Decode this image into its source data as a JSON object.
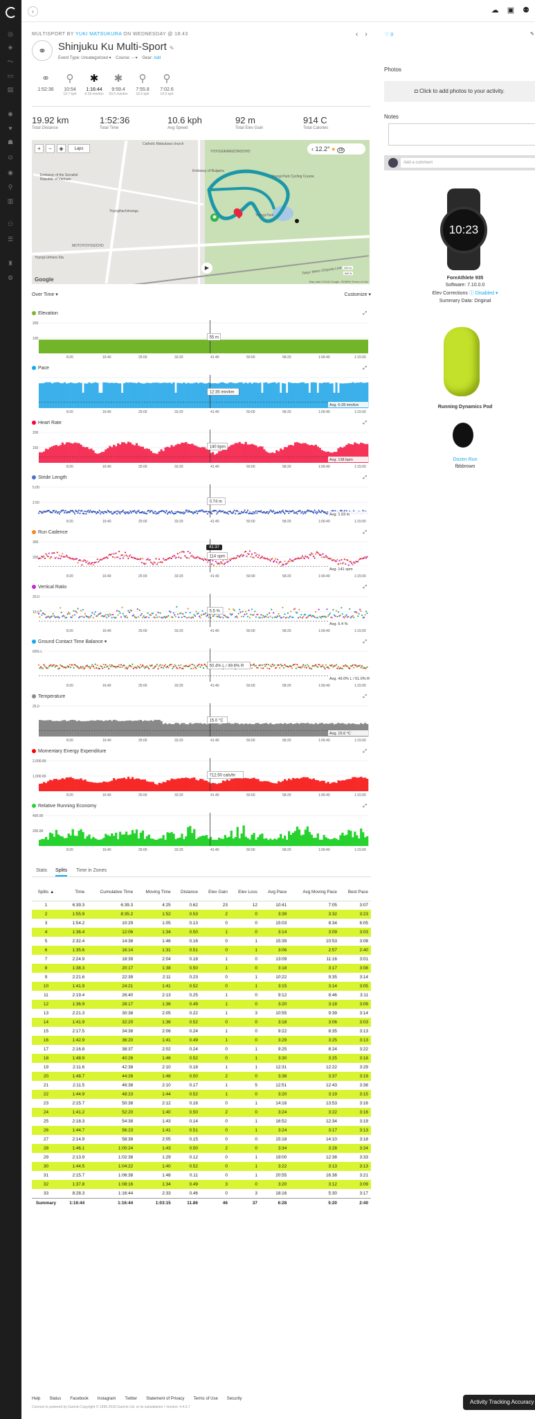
{
  "header": {
    "sport": "MULTISPORT BY",
    "user": "YUKI MATSUKURA",
    "on": "ON WEDNESDAY @ 18:43",
    "title": "Shinjuku Ku Multi-Sport",
    "meta_event": "Event Type: Uncategorized ▾",
    "meta_course": "Course: -- ▾",
    "meta_gear": "Gear:",
    "meta_gear_add": "Add",
    "likes": "0"
  },
  "legs": [
    {
      "icon": "multisport-icon",
      "time": "1:52:36",
      "sub": ""
    },
    {
      "icon": "bike-icon",
      "time": "10:54",
      "sub": "19.7 kph"
    },
    {
      "icon": "run-icon",
      "time": "1:16:44",
      "sub": "6:28 min/km"
    },
    {
      "icon": "run-icon",
      "time": "9:59.4",
      "sub": "59.5 min/km"
    },
    {
      "icon": "bike-icon",
      "time": "7:55.8",
      "sub": "18.5 kph"
    },
    {
      "icon": "bike-icon",
      "time": "7:02.6",
      "sub": "14.5 kph"
    }
  ],
  "summary": [
    {
      "value": "19.92 km",
      "label": "Total Distance"
    },
    {
      "value": "1:52:36",
      "label": "Total Time"
    },
    {
      "value": "10.6 kph",
      "label": "Avg Speed"
    },
    {
      "value": "92 m",
      "label": "Total Elev Gain"
    },
    {
      "value": "914 C",
      "label": "Total Calories"
    }
  ],
  "map": {
    "temp": "12.2°",
    "wind": "18",
    "laps": "Laps",
    "scale1": "100 m",
    "scale2": "500 ft",
    "attribution": "Map data ©2018 Google, ZENRIN   Terms of Use",
    "google": "Google",
    "labels": [
      "Catholic Matsubara church",
      "YOYOGIKAMIZONOCHO",
      "Embassy of Bulgaria",
      "Yoyogi Park Cycling Course",
      "Embassy of the Socialist Republic of Vietnam",
      "Yoyogi Park",
      "Yoyogihachimangu",
      "MOTOYOYOGICHO",
      "Tokyo Metro Chiyoda Line",
      "Yoyogi-Uehara Sta."
    ]
  },
  "view": {
    "left": "Over Time ▾",
    "right": "Customize ▾"
  },
  "charts": [
    {
      "key": "elev",
      "title": "Elevation",
      "color": "#7bb927",
      "fill": "#72b52a",
      "tooltip": "55 m",
      "avg": "",
      "ymax": "200",
      "ymid": "100",
      "kind": "area"
    },
    {
      "key": "pace",
      "title": "Pace",
      "color": "#11a9ed",
      "fill": "#3bb0ea",
      "tooltip": "12:35 min/km",
      "avg": "Avg. 6:28 min/km",
      "ymax": "",
      "ymid": "",
      "kind": "bars"
    },
    {
      "key": "hr",
      "title": "Heart Rate",
      "color": "#ff0035",
      "fill": "#f53358",
      "tooltip": "140 bpm",
      "avg": "Avg. 138 bpm",
      "ymax": "200",
      "ymid": "150",
      "kind": "hr"
    },
    {
      "key": "stride",
      "title": "Stride Length",
      "color": "#4d6ec9",
      "fill": "#3558c8",
      "tooltip": "0.74 m",
      "avg": "Avg. 1.03 m",
      "ymax": "5.00",
      "ymid": "2.50",
      "kind": "scatter"
    },
    {
      "key": "cad",
      "title": "Run Cadence",
      "color": "#f08a24",
      "fill": "#e7194b",
      "tooltip": "114 spm",
      "avg": "Avg. 141 spm",
      "ymax": "300",
      "ymid": "200",
      "kind": "scatter2"
    },
    {
      "key": "vr",
      "title": "Vertical Ratio",
      "color": "#c02ad0",
      "fill": "#c02ad0",
      "tooltip": "5.5 %",
      "avg": "Avg. 6.4 %",
      "ymax": "20.0",
      "ymid": "10.0",
      "kind": "scatter3"
    },
    {
      "key": "gct",
      "title": "Ground Contact Time Balance ▾",
      "color": "#11a9ed",
      "fill": "#f08a24",
      "tooltip": "50.4% L / 49.6% R",
      "avg": "Avg. 49.0% L / 51.0% R",
      "ymax": "60% L",
      "ymid": "",
      "kind": "scatter4"
    },
    {
      "key": "temp",
      "title": "Temperature",
      "color": "#888",
      "fill": "#888",
      "tooltip": "15.0 °C",
      "avg": "Avg. 15.6 °C",
      "ymax": "25.0",
      "ymid": "",
      "kind": "temp"
    },
    {
      "key": "mee",
      "title": "Momentary Energy Expenditure",
      "color": "#f00",
      "fill": "#f72828",
      "tooltip": "712.50 cals/hr",
      "avg": "",
      "ymax": "2,000.00",
      "ymid": "1,000.00",
      "kind": "mee"
    },
    {
      "key": "rre",
      "title": "Relative Running Economy",
      "color": "#2bd13a",
      "fill": "#27d12e",
      "tooltip": "",
      "avg": "",
      "ymax": "400.00",
      "ymid": "200.00",
      "kind": "rre"
    }
  ],
  "xticks": [
    "8:20",
    "16:40",
    "25:00",
    "33:20",
    "41:40",
    "50:00",
    "58:20",
    "1:06:40",
    "1:15:00"
  ],
  "cursor_time": "41:37",
  "photos": {
    "title": "Photos",
    "cta": "Click to add photos to your activity.",
    "notes": "Notes",
    "comment_ph": "Add a comment"
  },
  "devices": [
    {
      "name": "ForeAthlete 935",
      "l1": "Software: 7.10.0.0",
      "l2a": "Elev Corrections",
      "l2b": "Disabled ▾",
      "l3": "Summary Data: Original"
    },
    {
      "name": "Running Dynamics Pod"
    },
    {
      "name": "Dozen Run",
      "user": "fbbbrown",
      "watch": "10:23"
    }
  ],
  "tabs": [
    "Stats",
    "Splits",
    "Time in Zones"
  ],
  "table": {
    "headers": [
      "Splits ▲",
      "Cumulative Time",
      "Moving Time",
      "Distance",
      "Elev Gain",
      "Elev Loss",
      "Avg Pace",
      "Avg Moving Pace",
      "Best Pace"
    ],
    "time_header": "Time",
    "rows": [
      [
        "1",
        "6:39.3",
        "6:39.3",
        "4:25",
        "0.62",
        "23",
        "12",
        "10:41",
        "7:05",
        "3:07"
      ],
      [
        "2",
        "1:55.9",
        "8:35.2",
        "1:52",
        "0.53",
        "2",
        "0",
        "3:39",
        "3:32",
        "3:23"
      ],
      [
        "3",
        "1:54.2",
        "10:29",
        "1:05",
        "0.13",
        "0",
        "0",
        "15:03",
        "8:34",
        "6:05"
      ],
      [
        "4",
        "1:36.4",
        "12:06",
        "1:34",
        "0.50",
        "1",
        "0",
        "3:14",
        "3:09",
        "3:03"
      ],
      [
        "5",
        "2:32.4",
        "14:38",
        "1:46",
        "0.16",
        "0",
        "1",
        "15:39",
        "10:53",
        "3:08"
      ],
      [
        "6",
        "1:35.6",
        "16:14",
        "1:31",
        "0.51",
        "0",
        "1",
        "3:06",
        "2:57",
        "2:40"
      ],
      [
        "7",
        "2:24.9",
        "18:39",
        "2:04",
        "0.18",
        "1",
        "0",
        "13:09",
        "11:16",
        "3:01"
      ],
      [
        "8",
        "1:38.3",
        "20:17",
        "1:38",
        "0.50",
        "1",
        "0",
        "3:18",
        "3:17",
        "3:08"
      ],
      [
        "9",
        "2:21.6",
        "22:39",
        "2:11",
        "0.23",
        "0",
        "1",
        "10:22",
        "9:35",
        "3:14"
      ],
      [
        "10",
        "1:41.9",
        "24:21",
        "1:41",
        "0.52",
        "0",
        "1",
        "3:15",
        "3:14",
        "3:05"
      ],
      [
        "11",
        "2:19.4",
        "26:40",
        "2:13",
        "0.25",
        "1",
        "0",
        "9:12",
        "8:46",
        "3:11"
      ],
      [
        "12",
        "1:36.9",
        "28:17",
        "1:36",
        "0.49",
        "1",
        "0",
        "3:20",
        "3:18",
        "3:09"
      ],
      [
        "13",
        "2:21.3",
        "30:38",
        "2:05",
        "0.22",
        "1",
        "3",
        "10:55",
        "9:39",
        "3:14"
      ],
      [
        "14",
        "1:41.9",
        "32:20",
        "1:36",
        "0.52",
        "0",
        "0",
        "3:18",
        "3:06",
        "3:03"
      ],
      [
        "15",
        "2:17.5",
        "34:38",
        "2:06",
        "0.24",
        "1",
        "0",
        "9:22",
        "8:35",
        "3:13"
      ],
      [
        "16",
        "1:42.9",
        "36:20",
        "1:41",
        "0.49",
        "1",
        "0",
        "3:29",
        "3:25",
        "3:13"
      ],
      [
        "17",
        "2:16.8",
        "38:37",
        "2:02",
        "0.24",
        "0",
        "1",
        "9:25",
        "8:24",
        "3:22"
      ],
      [
        "18",
        "1:48.9",
        "40:26",
        "1:46",
        "0.52",
        "0",
        "1",
        "3:30",
        "3:25",
        "3:18"
      ],
      [
        "19",
        "2:11.6",
        "42:38",
        "2:10",
        "0.18",
        "1",
        "1",
        "12:31",
        "12:22",
        "3:29"
      ],
      [
        "20",
        "1:48.7",
        "44:26",
        "1:48",
        "0.50",
        "2",
        "0",
        "3:38",
        "3:37",
        "3:19"
      ],
      [
        "21",
        "2:11.5",
        "46:38",
        "2:10",
        "0.17",
        "1",
        "5",
        "12:51",
        "12:43",
        "3:38"
      ],
      [
        "22",
        "1:44.9",
        "48:23",
        "1:44",
        "0.52",
        "1",
        "0",
        "3:20",
        "3:19",
        "3:15"
      ],
      [
        "23",
        "2:15.7",
        "50:38",
        "2:12",
        "0.16",
        "0",
        "1",
        "14:16",
        "13:53",
        "3:16"
      ],
      [
        "24",
        "1:41.2",
        "52:20",
        "1:40",
        "0.50",
        "2",
        "0",
        "3:24",
        "3:22",
        "3:16"
      ],
      [
        "25",
        "2:18.3",
        "54:38",
        "1:43",
        "0.14",
        "0",
        "1",
        "16:52",
        "12:34",
        "3:19"
      ],
      [
        "26",
        "1:44.7",
        "56:23",
        "1:41",
        "0.51",
        "0",
        "1",
        "3:24",
        "3:17",
        "3:13"
      ],
      [
        "27",
        "2:14.9",
        "58:38",
        "2:05",
        "0.15",
        "0",
        "0",
        "15:18",
        "14:10",
        "3:18"
      ],
      [
        "28",
        "1:46.1",
        "1:00:24",
        "1:43",
        "0.50",
        "2",
        "0",
        "3:34",
        "3:28",
        "3:24"
      ],
      [
        "29",
        "2:13.9",
        "1:02:38",
        "1:29",
        "0.12",
        "0",
        "1",
        "19:00",
        "12:38",
        "3:33"
      ],
      [
        "30",
        "1:44.5",
        "1:04:22",
        "1:40",
        "0.52",
        "0",
        "1",
        "3:22",
        "3:13",
        "3:13"
      ],
      [
        "31",
        "2:15.7",
        "1:06:38",
        "1:48",
        "0.11",
        "0",
        "1",
        "20:55",
        "16:38",
        "3:21"
      ],
      [
        "32",
        "1:37.8",
        "1:08:16",
        "1:34",
        "0.49",
        "3",
        "0",
        "3:20",
        "3:12",
        "3:09"
      ],
      [
        "33",
        "8:28.3",
        "1:16:44",
        "2:33",
        "0.46",
        "0",
        "3",
        "18:16",
        "5:30",
        "3:17"
      ]
    ],
    "summary": [
      "Summary",
      "1:16:44",
      "1:16:44",
      "1:03:15",
      "11.86",
      "46",
      "37",
      "6:28",
      "5:20",
      "2:40"
    ]
  },
  "footer": [
    "Help",
    "Status",
    "Facebook",
    "Instagram",
    "Twitter",
    "Statement of Privacy",
    "Terms of Use",
    "Security"
  ],
  "footer2": "Connect is powered by Garmin      Copyright © 1996-2018 Garmin Ltd. or its subsidiaries • Version: 4.4.0.7",
  "tracker": "Activity Tracking Accuracy"
}
